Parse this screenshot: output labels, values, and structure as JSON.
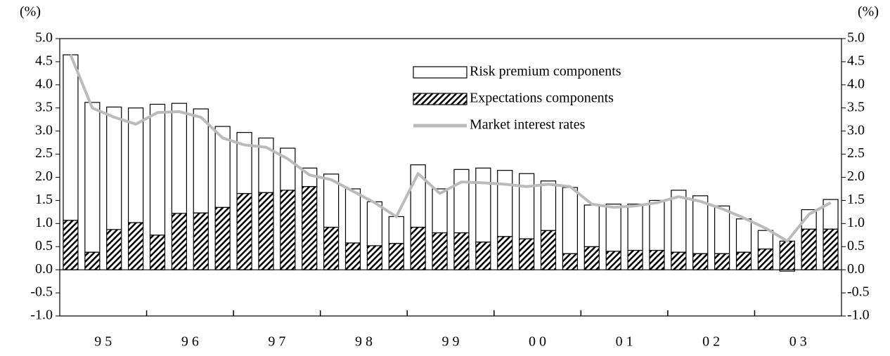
{
  "chart_data": {
    "type": "stacked_bar_line",
    "y_unit_label": "(%)",
    "y2_unit_label": "(%)",
    "categories": [
      null,
      "9 5",
      null,
      null,
      null,
      "9 6",
      null,
      null,
      null,
      "9 7",
      null,
      null,
      null,
      "9 8",
      null,
      null,
      null,
      "9 9",
      null,
      null,
      null,
      "0 0",
      null,
      null,
      null,
      "0 1",
      null,
      null,
      null,
      "0 2",
      null,
      null,
      null,
      "0 3",
      null,
      null
    ],
    "series": [
      {
        "name": "Expectations components",
        "kind": "bar",
        "color": "#000000",
        "values": [
          1.07,
          0.38,
          0.87,
          1.02,
          0.75,
          1.22,
          1.23,
          1.35,
          1.65,
          1.67,
          1.72,
          1.8,
          0.92,
          0.58,
          0.52,
          0.57,
          0.92,
          0.8,
          0.8,
          0.6,
          0.72,
          0.67,
          0.85,
          0.35,
          0.5,
          0.4,
          0.42,
          0.42,
          0.38,
          0.35,
          0.35,
          0.38,
          0.45,
          0.62,
          0.88,
          0.88
        ]
      },
      {
        "name": "Risk premium components",
        "kind": "bar",
        "color": "#ffffff",
        "values": [
          3.58,
          3.24,
          2.65,
          2.48,
          2.83,
          2.38,
          2.25,
          1.75,
          1.32,
          1.18,
          0.91,
          0.4,
          1.15,
          1.17,
          0.95,
          0.58,
          1.35,
          0.95,
          1.37,
          1.6,
          1.43,
          1.41,
          1.07,
          1.43,
          0.9,
          1.02,
          1.0,
          1.08,
          1.34,
          1.25,
          1.03,
          0.72,
          0.4,
          -0.03,
          0.42,
          0.64
        ]
      },
      {
        "name": "Market interest rates",
        "kind": "line",
        "color": "#bbbbbb",
        "axis": "y2",
        "values": [
          4.65,
          3.5,
          3.3,
          3.15,
          3.4,
          3.42,
          3.3,
          2.85,
          2.7,
          2.65,
          2.4,
          2.05,
          1.95,
          1.7,
          1.45,
          1.15,
          2.08,
          1.65,
          1.9,
          1.88,
          1.85,
          1.8,
          1.85,
          1.8,
          1.42,
          1.35,
          1.38,
          1.45,
          1.58,
          1.48,
          1.32,
          1.12,
          0.9,
          0.62,
          1.2,
          1.45
        ]
      }
    ],
    "ylim": [
      -1,
      5
    ],
    "yticks": [
      {
        "value": -1,
        "label": "-1.0"
      },
      {
        "value": -0.5,
        "label": "-0.5"
      },
      {
        "value": 0,
        "label": "0.0"
      },
      {
        "value": 0.5,
        "label": "0.5"
      },
      {
        "value": 1,
        "label": "1.0"
      },
      {
        "value": 1.5,
        "label": "1.5"
      },
      {
        "value": 2,
        "label": "2.0"
      },
      {
        "value": 2.5,
        "label": "2.5"
      },
      {
        "value": 3,
        "label": "3.0"
      },
      {
        "value": 3.5,
        "label": "3.5"
      },
      {
        "value": 4,
        "label": "4.0"
      },
      {
        "value": 4.5,
        "label": "4.5"
      },
      {
        "value": 5,
        "label": "5.0"
      }
    ],
    "y2lim": [
      -1,
      5
    ],
    "y2ticks": [
      {
        "value": -1,
        "label": "-1.0"
      },
      {
        "value": -0.5,
        "label": "-0.5"
      },
      {
        "value": 0,
        "label": "0.0"
      },
      {
        "value": 0.5,
        "label": "0.5"
      },
      {
        "value": 1,
        "label": "1.0"
      },
      {
        "value": 1.5,
        "label": "1.5"
      },
      {
        "value": 2,
        "label": "2.0"
      },
      {
        "value": 2.5,
        "label": "2.5"
      },
      {
        "value": 3,
        "label": "3.0"
      },
      {
        "value": 3.5,
        "label": "3.5"
      },
      {
        "value": 4,
        "label": "4.0"
      },
      {
        "value": 4.5,
        "label": "4.5"
      },
      {
        "value": 5,
        "label": "5.0"
      }
    ],
    "grid": false
  }
}
